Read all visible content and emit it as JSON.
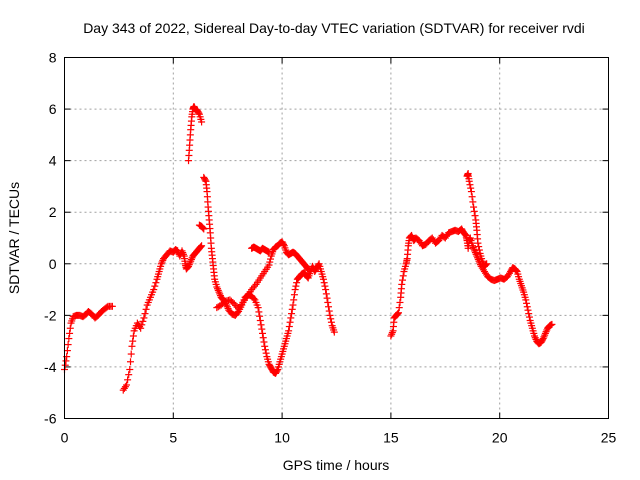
{
  "chart_data": {
    "type": "scatter",
    "title": "Day 343 of 2022, Sidereal Day-to-day VTEC variation (SDTVAR) for receiver rvdi",
    "xlabel": "GPS time / hours",
    "ylabel": "SDTVAR / TECUs",
    "xlim": [
      0,
      25
    ],
    "ylim": [
      -6,
      8
    ],
    "xticks": [
      0,
      5,
      10,
      15,
      20,
      25
    ],
    "yticks": [
      -6,
      -4,
      -2,
      0,
      2,
      4,
      6,
      8
    ],
    "grid": true,
    "marker": "plus",
    "color": "#ff0000",
    "series": [
      {
        "name": "SDTVAR",
        "segments": [
          [
            [
              0.0,
              -4.1
            ],
            [
              0.1,
              -3.6
            ],
            [
              0.2,
              -2.9
            ],
            [
              0.3,
              -2.3
            ],
            [
              0.4,
              -2.05
            ],
            [
              0.55,
              -2.0
            ],
            [
              0.7,
              -2.0
            ],
            [
              0.85,
              -2.05
            ],
            [
              1.0,
              -1.95
            ],
            [
              1.1,
              -1.85
            ],
            [
              1.25,
              -1.95
            ],
            [
              1.4,
              -2.1
            ],
            [
              1.55,
              -2.0
            ],
            [
              1.7,
              -1.85
            ],
            [
              1.85,
              -1.75
            ],
            [
              2.0,
              -1.65
            ],
            [
              2.2,
              -1.65
            ]
          ],
          [
            [
              2.7,
              -4.9
            ],
            [
              2.85,
              -4.7
            ],
            [
              3.0,
              -4.1
            ],
            [
              3.1,
              -3.2
            ],
            [
              3.2,
              -2.6
            ],
            [
              3.35,
              -2.3
            ],
            [
              3.5,
              -2.5
            ],
            [
              3.65,
              -2.1
            ],
            [
              3.8,
              -1.6
            ],
            [
              3.95,
              -1.3
            ],
            [
              4.1,
              -1.0
            ],
            [
              4.25,
              -0.6
            ],
            [
              4.35,
              -0.3
            ],
            [
              4.45,
              0.0
            ],
            [
              4.55,
              0.2
            ],
            [
              4.7,
              0.35
            ],
            [
              4.85,
              0.5
            ],
            [
              5.0,
              0.45
            ],
            [
              5.1,
              0.55
            ],
            [
              5.2,
              0.5
            ],
            [
              5.3,
              0.3
            ],
            [
              5.4,
              0.5
            ],
            [
              5.5,
              0.3
            ],
            [
              5.55,
              0.0
            ],
            [
              5.6,
              -0.2
            ],
            [
              5.7,
              -0.1
            ],
            [
              5.8,
              0.1
            ],
            [
              5.9,
              0.3
            ],
            [
              6.0,
              0.4
            ],
            [
              6.1,
              0.5
            ],
            [
              6.2,
              0.6
            ],
            [
              6.3,
              0.7
            ]
          ],
          [
            [
              5.7,
              4.0
            ],
            [
              5.75,
              4.6
            ],
            [
              5.8,
              5.2
            ],
            [
              5.85,
              5.7
            ],
            [
              5.9,
              6.0
            ],
            [
              5.95,
              6.1
            ],
            [
              6.0,
              6.0
            ],
            [
              6.1,
              5.95
            ],
            [
              6.2,
              5.8
            ],
            [
              6.3,
              5.5
            ]
          ],
          [
            [
              6.4,
              3.35
            ],
            [
              6.5,
              3.2
            ],
            [
              6.55,
              2.8
            ],
            [
              6.6,
              2.2
            ],
            [
              6.65,
              1.7
            ],
            [
              6.7,
              1.2
            ],
            [
              6.75,
              0.6
            ],
            [
              6.8,
              0.2
            ],
            [
              6.85,
              -0.2
            ],
            [
              6.9,
              -0.6
            ],
            [
              7.0,
              -0.9
            ],
            [
              7.1,
              -1.1
            ],
            [
              7.2,
              -1.3
            ],
            [
              7.3,
              -1.4
            ],
            [
              7.45,
              -1.6
            ],
            [
              7.55,
              -1.8
            ],
            [
              7.7,
              -1.95
            ],
            [
              7.85,
              -2.0
            ],
            [
              8.0,
              -1.85
            ],
            [
              8.15,
              -1.6
            ],
            [
              8.3,
              -1.3
            ],
            [
              8.45,
              -1.2
            ],
            [
              8.6,
              -1.25
            ],
            [
              8.75,
              -1.4
            ],
            [
              8.9,
              -1.7
            ],
            [
              9.0,
              -2.2
            ],
            [
              9.1,
              -2.7
            ],
            [
              9.2,
              -3.2
            ],
            [
              9.3,
              -3.6
            ],
            [
              9.4,
              -3.9
            ],
            [
              9.5,
              -4.05
            ],
            [
              9.6,
              -4.2
            ],
            [
              9.7,
              -4.25
            ],
            [
              9.8,
              -4.1
            ],
            [
              9.9,
              -3.8
            ],
            [
              10.0,
              -3.5
            ],
            [
              10.1,
              -3.2
            ],
            [
              10.2,
              -2.9
            ],
            [
              10.3,
              -2.6
            ],
            [
              10.4,
              -2.1
            ],
            [
              10.5,
              -1.6
            ],
            [
              10.6,
              -1.0
            ],
            [
              10.7,
              -0.6
            ],
            [
              10.8,
              -0.5
            ],
            [
              10.9,
              -0.4
            ],
            [
              11.0,
              -0.35
            ],
            [
              11.1,
              -0.45
            ],
            [
              11.2,
              -0.55
            ],
            [
              11.3,
              -0.3
            ],
            [
              11.4,
              -0.1
            ],
            [
              11.5,
              -0.3
            ],
            [
              11.6,
              -0.15
            ],
            [
              11.7,
              0.0
            ],
            [
              11.8,
              -0.3
            ],
            [
              11.9,
              -0.6
            ],
            [
              12.0,
              -1.0
            ],
            [
              12.1,
              -1.5
            ],
            [
              12.2,
              -2.0
            ],
            [
              12.3,
              -2.4
            ],
            [
              12.4,
              -2.65
            ]
          ],
          [
            [
              6.2,
              1.5
            ],
            [
              6.3,
              1.45
            ],
            [
              6.4,
              1.35
            ]
          ],
          [
            [
              7.0,
              -1.7
            ],
            [
              7.2,
              -1.6
            ],
            [
              7.4,
              -1.45
            ],
            [
              7.6,
              -1.4
            ],
            [
              7.8,
              -1.55
            ],
            [
              8.0,
              -1.75
            ],
            [
              8.2,
              -1.5
            ],
            [
              8.4,
              -1.25
            ],
            [
              8.6,
              -1.0
            ],
            [
              8.8,
              -0.8
            ],
            [
              9.0,
              -0.55
            ],
            [
              9.2,
              -0.3
            ],
            [
              9.4,
              -0.05
            ],
            [
              9.5,
              0.3
            ],
            [
              9.6,
              0.55
            ],
            [
              9.7,
              0.65
            ],
            [
              9.8,
              0.7
            ],
            [
              9.9,
              0.8
            ],
            [
              10.0,
              0.85
            ],
            [
              10.1,
              0.7
            ],
            [
              10.2,
              0.45
            ],
            [
              10.3,
              0.35
            ],
            [
              10.4,
              0.4
            ],
            [
              10.5,
              0.45
            ],
            [
              10.6,
              0.4
            ],
            [
              10.7,
              0.3
            ],
            [
              10.8,
              0.2
            ],
            [
              10.9,
              0.1
            ],
            [
              11.0,
              0.0
            ],
            [
              11.1,
              -0.1
            ],
            [
              11.2,
              -0.25
            ]
          ],
          [
            [
              8.6,
              0.6
            ],
            [
              8.7,
              0.65
            ],
            [
              8.8,
              0.6
            ],
            [
              8.9,
              0.55
            ],
            [
              9.0,
              0.5
            ],
            [
              9.1,
              0.6
            ],
            [
              9.2,
              0.55
            ],
            [
              9.3,
              0.5
            ],
            [
              9.4,
              0.45
            ]
          ],
          [
            [
              15.0,
              -2.8
            ],
            [
              15.1,
              -2.6
            ],
            [
              15.15,
              -2.1
            ],
            [
              15.25,
              -2.0
            ],
            [
              15.35,
              -1.9
            ],
            [
              15.45,
              -1.3
            ],
            [
              15.5,
              -0.8
            ],
            [
              15.6,
              -0.3
            ],
            [
              15.7,
              0.0
            ],
            [
              15.75,
              0.2
            ],
            [
              15.8,
              0.7
            ],
            [
              15.85,
              1.0
            ],
            [
              15.95,
              1.1
            ],
            [
              16.05,
              0.9
            ],
            [
              16.15,
              1.0
            ],
            [
              16.3,
              0.9
            ],
            [
              16.45,
              0.7
            ],
            [
              16.6,
              0.75
            ],
            [
              16.75,
              0.9
            ],
            [
              16.9,
              1.0
            ],
            [
              17.05,
              0.8
            ],
            [
              17.2,
              0.9
            ],
            [
              17.35,
              1.1
            ],
            [
              17.5,
              1.0
            ],
            [
              17.65,
              1.2
            ],
            [
              17.8,
              1.25
            ],
            [
              17.95,
              1.3
            ],
            [
              18.1,
              1.25
            ],
            [
              18.25,
              1.35
            ],
            [
              18.35,
              1.2
            ],
            [
              18.45,
              1.1
            ],
            [
              18.5,
              0.9
            ],
            [
              18.55,
              0.6
            ],
            [
              18.6,
              0.9
            ],
            [
              18.65,
              1.0
            ],
            [
              18.75,
              0.7
            ],
            [
              18.85,
              0.5
            ],
            [
              18.95,
              0.3
            ],
            [
              19.05,
              0.1
            ],
            [
              19.15,
              -0.1
            ],
            [
              19.3,
              -0.3
            ],
            [
              19.45,
              -0.5
            ],
            [
              19.6,
              -0.6
            ],
            [
              19.75,
              -0.65
            ],
            [
              19.9,
              -0.6
            ],
            [
              20.05,
              -0.55
            ],
            [
              20.2,
              -0.6
            ],
            [
              20.35,
              -0.5
            ],
            [
              20.5,
              -0.3
            ],
            [
              20.6,
              -0.15
            ],
            [
              20.7,
              -0.2
            ],
            [
              20.8,
              -0.3
            ],
            [
              20.9,
              -0.6
            ],
            [
              21.0,
              -0.85
            ],
            [
              21.1,
              -1.1
            ],
            [
              21.2,
              -1.4
            ],
            [
              21.3,
              -1.8
            ],
            [
              21.4,
              -2.2
            ],
            [
              21.5,
              -2.5
            ],
            [
              21.6,
              -2.8
            ],
            [
              21.7,
              -3.0
            ],
            [
              21.8,
              -3.1
            ],
            [
              21.9,
              -3.05
            ],
            [
              22.0,
              -2.9
            ],
            [
              22.1,
              -2.7
            ],
            [
              22.2,
              -2.5
            ],
            [
              22.3,
              -2.4
            ],
            [
              22.4,
              -2.35
            ]
          ],
          [
            [
              18.5,
              3.4
            ],
            [
              18.55,
              3.5
            ],
            [
              18.6,
              3.2
            ],
            [
              18.7,
              2.8
            ],
            [
              18.8,
              2.2
            ],
            [
              18.9,
              1.7
            ],
            [
              18.95,
              1.3
            ],
            [
              19.0,
              0.8
            ],
            [
              19.1,
              0.4
            ],
            [
              19.2,
              0.1
            ],
            [
              19.3,
              -0.1
            ],
            [
              19.4,
              0.0
            ]
          ]
        ]
      }
    ]
  }
}
